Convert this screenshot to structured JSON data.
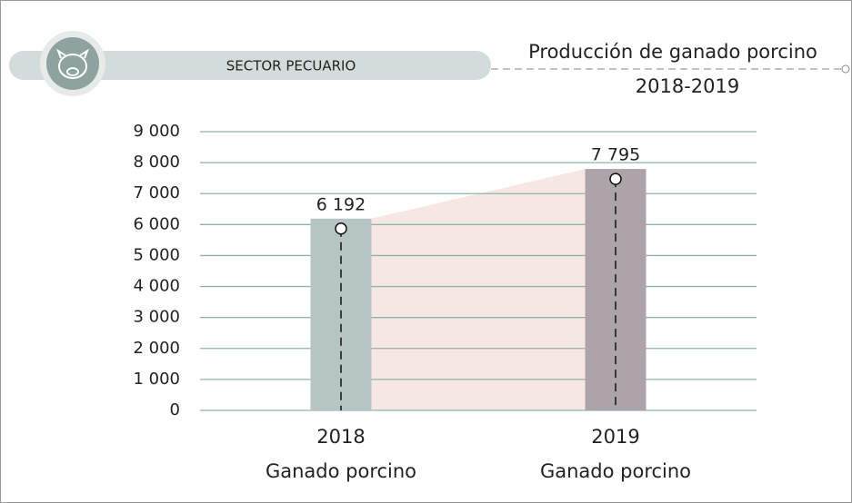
{
  "chart_data": {
    "type": "bar",
    "header": "SECTOR PECUARIO",
    "title": "Producción de ganado porcino",
    "subtitle": "2018-2019",
    "categories": [
      "2018",
      "2019"
    ],
    "category_sublabels": [
      "Ganado porcino",
      "Ganado porcino"
    ],
    "values": [
      6192,
      7795
    ],
    "value_labels": [
      "6 192",
      "7 795"
    ],
    "colors": [
      "#b6c5c4",
      "#ada4aa"
    ],
    "area_color": "#f6e7e3",
    "ylim": [
      0,
      9000
    ],
    "yticks": [
      0,
      {
        "value": 1000,
        "label": "1 000"
      },
      {
        "value": 2000,
        "label": "2 000"
      },
      {
        "value": 3000,
        "label": "3 000"
      },
      {
        "value": 4000,
        "label": "4 000"
      },
      {
        "value": 5000,
        "label": "5 000"
      },
      {
        "value": 6000,
        "label": "6 000"
      },
      {
        "value": 7000,
        "label": "7 000"
      },
      {
        "value": 8000,
        "label": "8 000"
      },
      {
        "value": 9000,
        "label": "9 000"
      }
    ],
    "grid": true
  }
}
